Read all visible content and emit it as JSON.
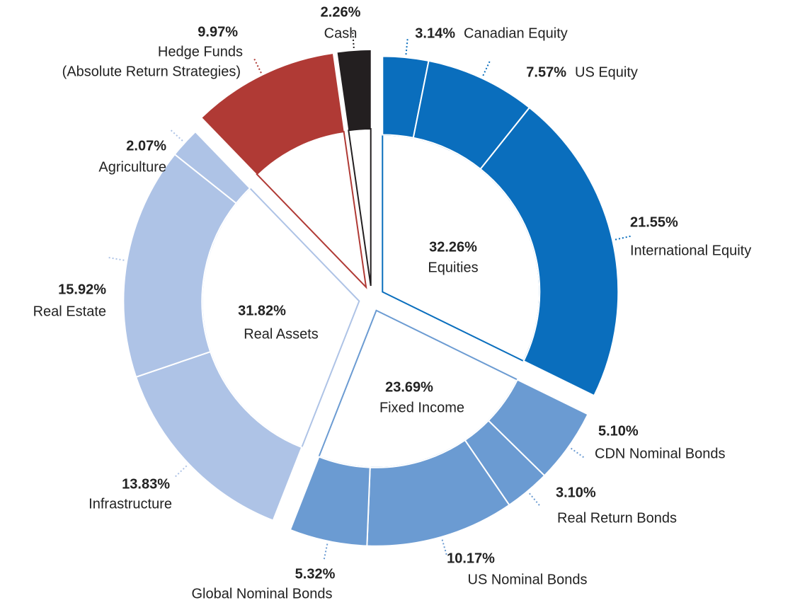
{
  "chart_data": {
    "type": "pie",
    "groups": [
      {
        "name": "Equities",
        "value": 32.26,
        "value_label": "32.26%",
        "color": "#0a6ebd",
        "segments": [
          {
            "name": "Canadian Equity",
            "value": 3.14,
            "value_label": "3.14%"
          },
          {
            "name": "US Equity",
            "value": 7.57,
            "value_label": "7.57%"
          },
          {
            "name": "International Equity",
            "value": 21.55,
            "value_label": "21.55%"
          }
        ]
      },
      {
        "name": "Fixed Income",
        "value": 23.69,
        "value_label": "23.69%",
        "color": "#6b9bd2",
        "segments": [
          {
            "name": "CDN Nominal Bonds",
            "value": 5.1,
            "value_label": "5.10%"
          },
          {
            "name": "Real Return Bonds",
            "value": 3.1,
            "value_label": "3.10%"
          },
          {
            "name": "US Nominal Bonds",
            "value": 10.17,
            "value_label": "10.17%"
          },
          {
            "name": "Global Nominal Bonds",
            "value": 5.32,
            "value_label": "5.32%"
          }
        ]
      },
      {
        "name": "Real Assets",
        "value": 31.82,
        "value_label": "31.82%",
        "color": "#aec3e6",
        "segments": [
          {
            "name": "Infrastructure",
            "value": 13.83,
            "value_label": "13.83%"
          },
          {
            "name": "Real Estate",
            "value": 15.92,
            "value_label": "15.92%"
          },
          {
            "name": "Agriculture",
            "value": 2.07,
            "value_label": "2.07%"
          }
        ]
      },
      {
        "name": [
          "Hedge Funds",
          "(Absolute Return Strategies)"
        ],
        "value": 9.97,
        "value_label": "9.97%",
        "color": "#b03a35"
      },
      {
        "name": "Cash",
        "value": 2.26,
        "value_label": "2.26%",
        "color": "#231f20"
      }
    ]
  }
}
